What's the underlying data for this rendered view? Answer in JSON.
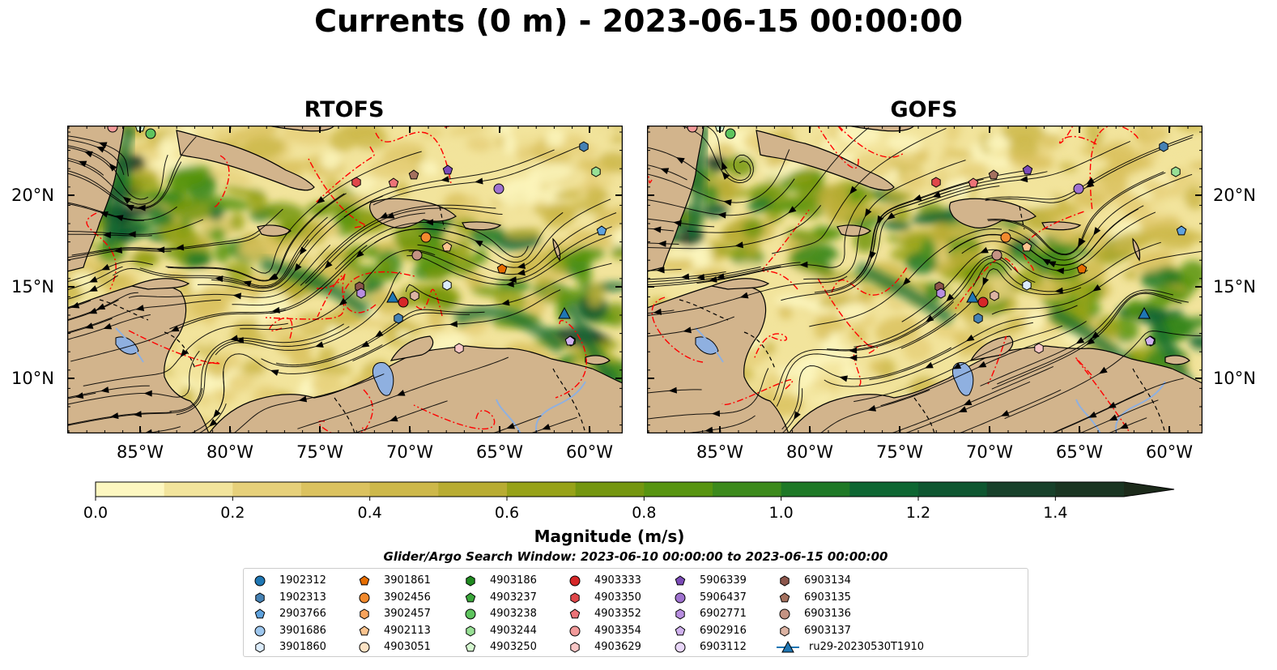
{
  "title": "Currents (0 m) - 2023-06-15 00:00:00",
  "panels": [
    {
      "title": "RTOFS"
    },
    {
      "title": "GOFS"
    }
  ],
  "lat_ticks": [
    "20°N",
    "15°N",
    "10°N"
  ],
  "lon_ticks": [
    "85°W",
    "80°W",
    "75°W",
    "70°W",
    "65°W",
    "60°W"
  ],
  "colorbar": {
    "label": "Magnitude (m/s)",
    "ticks": [
      "0.0",
      "0.2",
      "0.4",
      "0.6",
      "0.8",
      "1.0",
      "1.2",
      "1.4"
    ],
    "min": 0.0,
    "max": 1.5,
    "step": 0.1,
    "extend": "max",
    "colors": [
      "#fdf7c0",
      "#f2e49c",
      "#e6d07a",
      "#dbc25f",
      "#cdb84a",
      "#b8ac32",
      "#97a218",
      "#74960f",
      "#579410",
      "#3c8a1c",
      "#1e7826",
      "#0d6632",
      "#0e5630",
      "#17402a",
      "#1a3522",
      "#1c2a1a"
    ]
  },
  "search_window": "Glider/Argo Search Window: 2023-06-10 00:00:00 to 2023-06-15 00:00:00",
  "legend": [
    {
      "label": "1902312",
      "marker": "circle",
      "color": "#1f77b4"
    },
    {
      "label": "1902313",
      "marker": "hexagon",
      "color": "#4682b4"
    },
    {
      "label": "2903766",
      "marker": "pentagon",
      "color": "#5fa2dd"
    },
    {
      "label": "3901686",
      "marker": "circle",
      "color": "#9ec7ee"
    },
    {
      "label": "3901860",
      "marker": "hexagon",
      "color": "#dcecfb"
    },
    {
      "label": "3901861",
      "marker": "pentagon",
      "color": "#e66d00"
    },
    {
      "label": "3902456",
      "marker": "circle",
      "color": "#f28a2e"
    },
    {
      "label": "3902457",
      "marker": "hexagon",
      "color": "#f7a35c"
    },
    {
      "label": "4902113",
      "marker": "pentagon",
      "color": "#fbc48f"
    },
    {
      "label": "4903051",
      "marker": "circle",
      "color": "#fde2c4"
    },
    {
      "label": "4903186",
      "marker": "hexagon",
      "color": "#1f8a1f"
    },
    {
      "label": "4903237",
      "marker": "pentagon",
      "color": "#3aa63a"
    },
    {
      "label": "4903238",
      "marker": "circle",
      "color": "#5ec45e"
    },
    {
      "label": "4903244",
      "marker": "hexagon",
      "color": "#98e095"
    },
    {
      "label": "4903250",
      "marker": "pentagon",
      "color": "#d4f7cf"
    },
    {
      "label": "4903333",
      "marker": "circle",
      "color": "#d62728"
    },
    {
      "label": "4903350",
      "marker": "hexagon",
      "color": "#e0474a"
    },
    {
      "label": "4903352",
      "marker": "pentagon",
      "color": "#ec7378"
    },
    {
      "label": "4903354",
      "marker": "circle",
      "color": "#f29a9a"
    },
    {
      "label": "4903629",
      "marker": "hexagon",
      "color": "#f8c6c6"
    },
    {
      "label": "5906339",
      "marker": "pentagon",
      "color": "#7b4bb7"
    },
    {
      "label": "5906437",
      "marker": "circle",
      "color": "#9f72cf"
    },
    {
      "label": "6902771",
      "marker": "hexagon",
      "color": "#b88ee0"
    },
    {
      "label": "6902916",
      "marker": "pentagon",
      "color": "#d0b2ee"
    },
    {
      "label": "6903112",
      "marker": "circle",
      "color": "#e8d6f8"
    },
    {
      "label": "6903134",
      "marker": "hexagon",
      "color": "#8c564b"
    },
    {
      "label": "6903135",
      "marker": "pentagon",
      "color": "#a4715f"
    },
    {
      "label": "6903136",
      "marker": "circle",
      "color": "#c49383"
    },
    {
      "label": "6903137",
      "marker": "hexagon",
      "color": "#dcb3a3"
    },
    {
      "label": "ru29-20230530T1910",
      "marker": "triangle-line",
      "color": "#1f77b4"
    }
  ],
  "colors": {
    "land": "#d2b48c",
    "water_bodies": "#8fb0e0",
    "eez_lines": "#ff0000",
    "streamlines": "#000000"
  }
}
